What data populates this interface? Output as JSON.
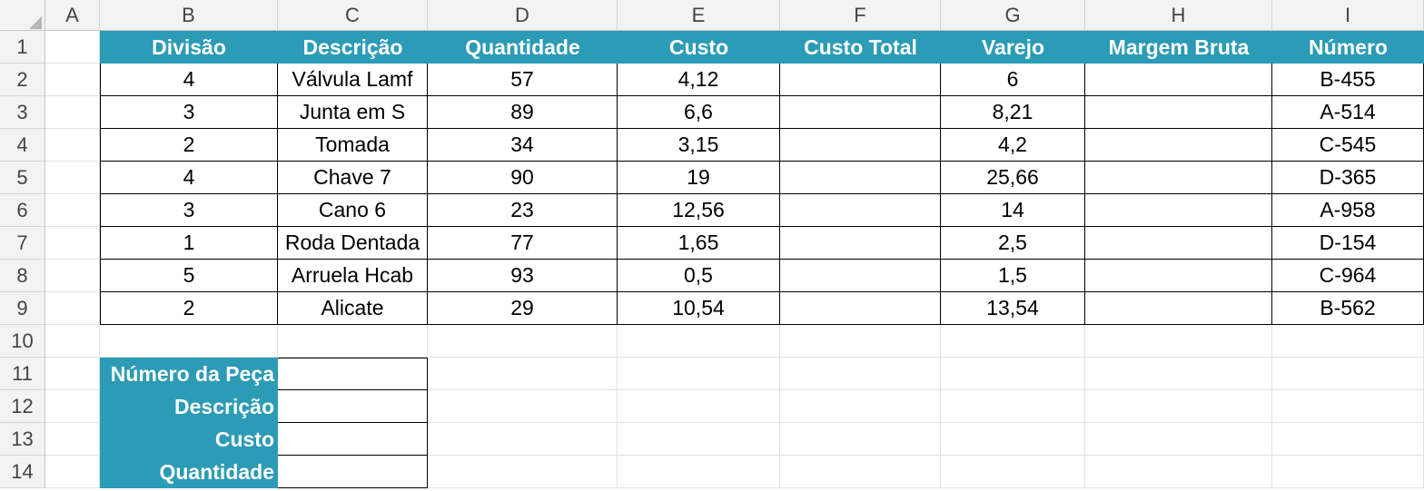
{
  "columns": [
    "A",
    "B",
    "C",
    "D",
    "E",
    "F",
    "G",
    "H",
    "I"
  ],
  "rows": [
    "1",
    "2",
    "3",
    "4",
    "5",
    "6",
    "7",
    "8",
    "9",
    "10",
    "11",
    "12",
    "13",
    "14"
  ],
  "table": {
    "headers": [
      "Divisão",
      "Descrição",
      "Quantidade",
      "Custo",
      "Custo Total",
      "Varejo",
      "Margem Bruta",
      "Número"
    ],
    "rows": [
      [
        "4",
        "Válvula Lamf",
        "57",
        "4,12",
        "",
        "6",
        "",
        "B-455"
      ],
      [
        "3",
        "Junta em S",
        "89",
        "6,6",
        "",
        "8,21",
        "",
        "A-514"
      ],
      [
        "2",
        "Tomada",
        "34",
        "3,15",
        "",
        "4,2",
        "",
        "C-545"
      ],
      [
        "4",
        "Chave 7",
        "90",
        "19",
        "",
        "25,66",
        "",
        "D-365"
      ],
      [
        "3",
        "Cano 6",
        "23",
        "12,56",
        "",
        "14",
        "",
        "A-958"
      ],
      [
        "1",
        "Roda Dentada",
        "77",
        "1,65",
        "",
        "2,5",
        "",
        "D-154"
      ],
      [
        "5",
        "Arruela Hcab",
        "93",
        "0,5",
        "",
        "1,5",
        "",
        "C-964"
      ],
      [
        "2",
        "Alicate",
        "29",
        "10,54",
        "",
        "13,54",
        "",
        "B-562"
      ]
    ]
  },
  "lookup": {
    "labels": [
      "Número da Peça",
      "Descrição",
      "Custo",
      "Quantidade"
    ],
    "values": [
      "",
      "",
      "",
      ""
    ]
  },
  "colors": {
    "header_fill": "#2c9bb5",
    "header_text": "#ffffff"
  }
}
